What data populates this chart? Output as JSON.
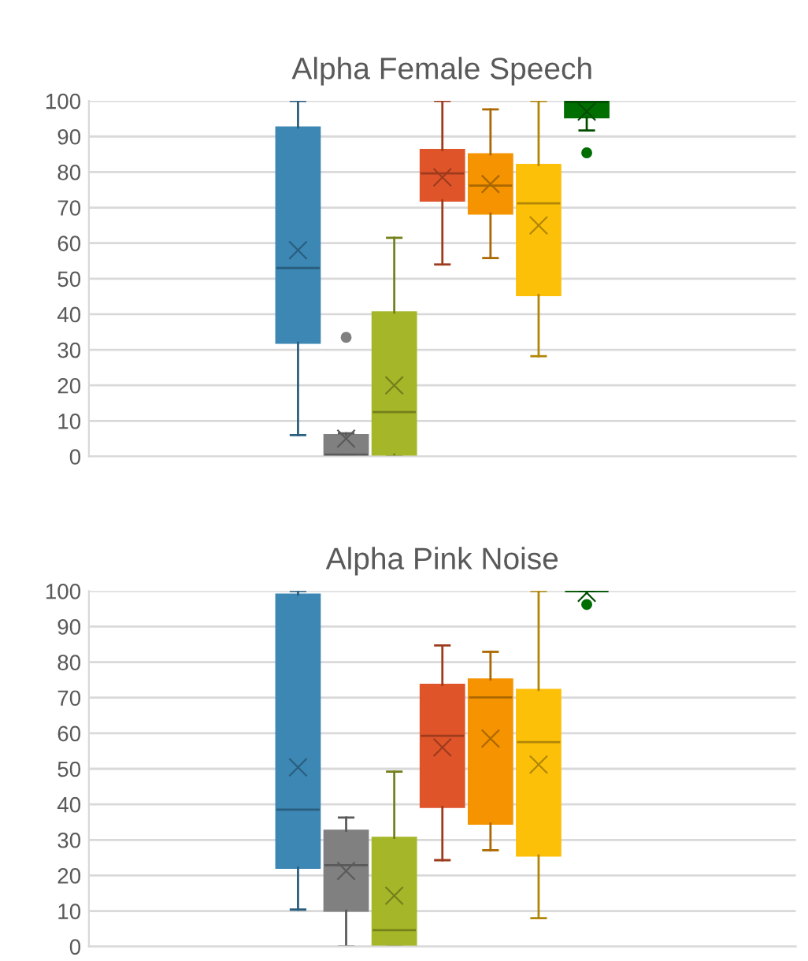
{
  "chart_data": [
    {
      "type": "box",
      "title": "Alpha Female Speech",
      "categories": [
        null
      ],
      "ylim": [
        0,
        100
      ],
      "yticks": [
        0,
        10,
        20,
        30,
        40,
        50,
        60,
        70,
        80,
        90,
        100
      ],
      "grid": "y",
      "tick_labels": "y",
      "legend": false,
      "series": [
        {
          "color": "#3c87b4",
          "boxes": [
            {
              "low": 6,
              "q1": 32,
              "median": 53,
              "q3": 92.5,
              "high": 100,
              "mean": 58
            }
          ]
        },
        {
          "color": "#808080",
          "boxes": [
            {
              "low": 0,
              "q1": 0,
              "median": 0.5,
              "q3": 6,
              "high": 6.5,
              "mean": 5,
              "outliers": [
                33.5
              ]
            }
          ]
        },
        {
          "color": "#a5b728",
          "boxes": [
            {
              "low": 0,
              "q1": 0.5,
              "median": 12.5,
              "q3": 40.5,
              "high": 61.5,
              "mean": 20
            }
          ]
        },
        {
          "color": "#e0542a",
          "boxes": [
            {
              "low": 54,
              "q1": 72,
              "median": 79.6,
              "q3": 86.2,
              "high": 100,
              "mean": 78.5
            }
          ]
        },
        {
          "color": "#f59300",
          "boxes": [
            {
              "low": 55.8,
              "q1": 68.3,
              "median": 76.2,
              "q3": 85,
              "high": 97.6,
              "mean": 76.6
            }
          ]
        },
        {
          "color": "#fdc009",
          "boxes": [
            {
              "low": 28.2,
              "q1": 45.4,
              "median": 71.2,
              "q3": 82,
              "high": 100,
              "mean": 65
            }
          ]
        },
        {
          "color": "#006e00",
          "boxes": [
            {
              "low": 91.7,
              "q1": 95.4,
              "median": 99.7,
              "q3": 100,
              "high": 100,
              "mean": 97,
              "outliers": [
                85.4
              ]
            }
          ]
        }
      ]
    },
    {
      "type": "box",
      "title": "Alpha Pink Noise",
      "categories": [
        null
      ],
      "ylim": [
        0,
        100
      ],
      "yticks": [
        0,
        10,
        20,
        30,
        40,
        50,
        60,
        70,
        80,
        90,
        100
      ],
      "grid": "y",
      "tick_labels": "y",
      "legend": false,
      "series": [
        {
          "color": "#3c87b4",
          "boxes": [
            {
              "low": 10.4,
              "q1": 22.2,
              "median": 38.5,
              "q3": 99,
              "high": 100,
              "mean": 50.4
            }
          ]
        },
        {
          "color": "#808080",
          "boxes": [
            {
              "low": 0,
              "q1": 10.1,
              "median": 22.9,
              "q3": 32.6,
              "high": 36.3,
              "mean": 21.3
            }
          ]
        },
        {
          "color": "#a5b728",
          "boxes": [
            {
              "low": 0,
              "q1": 0,
              "median": 4.6,
              "q3": 30.6,
              "high": 49.2,
              "mean": 14.3
            }
          ]
        },
        {
          "color": "#e0542a",
          "boxes": [
            {
              "low": 24.3,
              "q1": 39.3,
              "median": 59.3,
              "q3": 73.6,
              "high": 84.7,
              "mean": 56
            }
          ]
        },
        {
          "color": "#f59300",
          "boxes": [
            {
              "low": 27.1,
              "q1": 34.6,
              "median": 70.1,
              "q3": 75.1,
              "high": 82.9,
              "mean": 58.5
            }
          ]
        },
        {
          "color": "#fdc009",
          "boxes": [
            {
              "low": 8,
              "q1": 25.6,
              "median": 57.5,
              "q3": 72.2,
              "high": 100,
              "mean": 51.2
            }
          ]
        },
        {
          "color": "#006e00",
          "boxes": [
            {
              "low": 100,
              "q1": 100,
              "median": 100,
              "q3": 100,
              "high": 100,
              "mean": 99.5,
              "outliers": [
                96.2
              ]
            }
          ]
        }
      ]
    }
  ]
}
